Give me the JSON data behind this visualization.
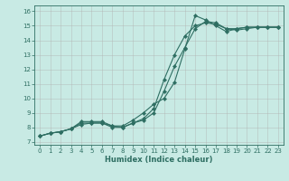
{
  "xlabel": "Humidex (Indice chaleur)",
  "bg_color": "#c8eae4",
  "grid_color": "#b0b0b0",
  "line_color": "#2e6e62",
  "xlim_min": -0.5,
  "xlim_max": 23.5,
  "ylim_min": 6.8,
  "ylim_max": 16.4,
  "xticks": [
    0,
    1,
    2,
    3,
    4,
    5,
    6,
    7,
    8,
    9,
    10,
    11,
    12,
    13,
    14,
    15,
    16,
    17,
    18,
    19,
    20,
    21,
    22,
    23
  ],
  "yticks": [
    7,
    8,
    9,
    10,
    11,
    12,
    13,
    14,
    15,
    16
  ],
  "line1_x": [
    0,
    1,
    2,
    3,
    4,
    5,
    6,
    7,
    8,
    9,
    10,
    11,
    12,
    13,
    14,
    15,
    16,
    17,
    18,
    19,
    20,
    21,
    22,
    23
  ],
  "line1_y": [
    7.4,
    7.6,
    7.7,
    7.9,
    8.4,
    8.4,
    8.4,
    8.1,
    8.1,
    8.5,
    9.0,
    9.6,
    10.0,
    11.1,
    13.4,
    15.7,
    15.4,
    15.0,
    14.6,
    14.8,
    14.9,
    14.9,
    14.9,
    14.9
  ],
  "line2_x": [
    0,
    1,
    2,
    3,
    4,
    5,
    6,
    7,
    8,
    9,
    10,
    11,
    12,
    13,
    14,
    15,
    16,
    17,
    18,
    19,
    20,
    21,
    22,
    23
  ],
  "line2_y": [
    7.4,
    7.6,
    7.7,
    7.9,
    8.3,
    8.3,
    8.3,
    8.1,
    8.0,
    8.3,
    8.6,
    9.3,
    11.3,
    13.0,
    14.3,
    15.0,
    15.2,
    15.1,
    14.8,
    14.8,
    14.9,
    14.9,
    14.9,
    14.9
  ],
  "line3_x": [
    0,
    1,
    2,
    3,
    4,
    5,
    6,
    7,
    8,
    9,
    10,
    11,
    12,
    13,
    14,
    15,
    16,
    17,
    18,
    19,
    20,
    21,
    22,
    23
  ],
  "line3_y": [
    7.4,
    7.6,
    7.7,
    7.9,
    8.2,
    8.3,
    8.3,
    8.0,
    8.0,
    8.3,
    8.5,
    9.0,
    10.5,
    12.2,
    13.5,
    14.8,
    15.3,
    15.2,
    14.8,
    14.7,
    14.8,
    14.9,
    14.9,
    14.9
  ],
  "marker_size": 2.2,
  "line_width": 0.8,
  "tick_fontsize": 5.0,
  "xlabel_fontsize": 6.0
}
